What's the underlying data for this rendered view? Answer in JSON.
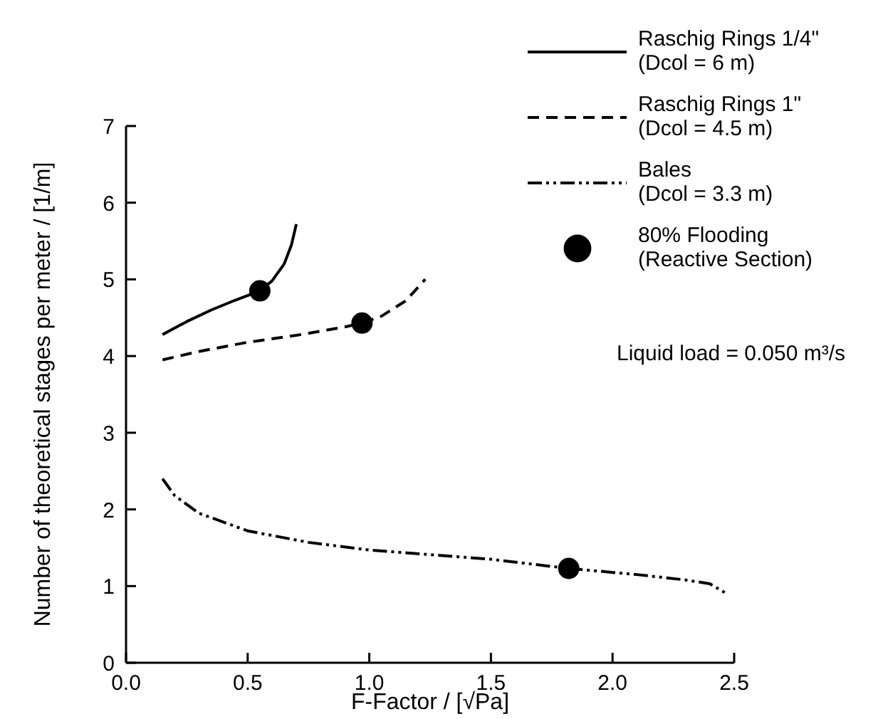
{
  "chart_data": {
    "type": "line",
    "xlabel": "F-Factor / [√Pa]",
    "ylabel": "Number of theoretical stages per meter / [1/m]",
    "xlim": [
      0,
      2.5
    ],
    "ylim": [
      0,
      7
    ],
    "xticks": [
      {
        "value": 0,
        "label": "0.0"
      },
      0.5,
      {
        "value": 1,
        "label": "1.0"
      },
      1.5,
      {
        "value": 2,
        "label": "2.0"
      },
      2.5
    ],
    "yticks": [
      0,
      1,
      2,
      3,
      4,
      5,
      6,
      7
    ],
    "grid": false,
    "legend": "top right",
    "annotations": [
      "Liquid load = 0.050 m³/s"
    ],
    "series": [
      {
        "name": "Raschig Rings 1/4\"\n(Dcol = 6 m)",
        "line_style": "solid",
        "color": "#000000",
        "x": [
          0.15,
          0.25,
          0.35,
          0.45,
          0.55,
          0.6,
          0.65,
          0.68,
          0.7
        ],
        "values": [
          4.28,
          4.45,
          4.6,
          4.73,
          4.85,
          4.98,
          5.2,
          5.45,
          5.72
        ]
      },
      {
        "name": "Raschig Rings 1\"\n(Dcol = 4.5 m)",
        "line_style": "dashed",
        "color": "#000000",
        "x": [
          0.15,
          0.3,
          0.5,
          0.7,
          0.9,
          0.97,
          1.05,
          1.15,
          1.23
        ],
        "values": [
          3.95,
          4.06,
          4.18,
          4.27,
          4.38,
          4.43,
          4.52,
          4.72,
          5.0
        ]
      },
      {
        "name": "Bales\n(Dcol = 3.3 m)",
        "line_style": "dashdot",
        "color": "#000000",
        "x": [
          0.15,
          0.2,
          0.3,
          0.5,
          0.75,
          1.0,
          1.25,
          1.5,
          1.82,
          2.1,
          2.3,
          2.4,
          2.47
        ],
        "values": [
          2.4,
          2.18,
          1.95,
          1.72,
          1.57,
          1.47,
          1.41,
          1.35,
          1.23,
          1.15,
          1.08,
          1.03,
          0.9
        ]
      },
      {
        "name": "80% Flooding\n(Reactive Section)",
        "type": "scatter",
        "marker": "circle",
        "color": "#000000",
        "x": [
          0.55,
          0.97,
          1.82
        ],
        "values": [
          4.85,
          4.43,
          1.23
        ]
      }
    ]
  }
}
